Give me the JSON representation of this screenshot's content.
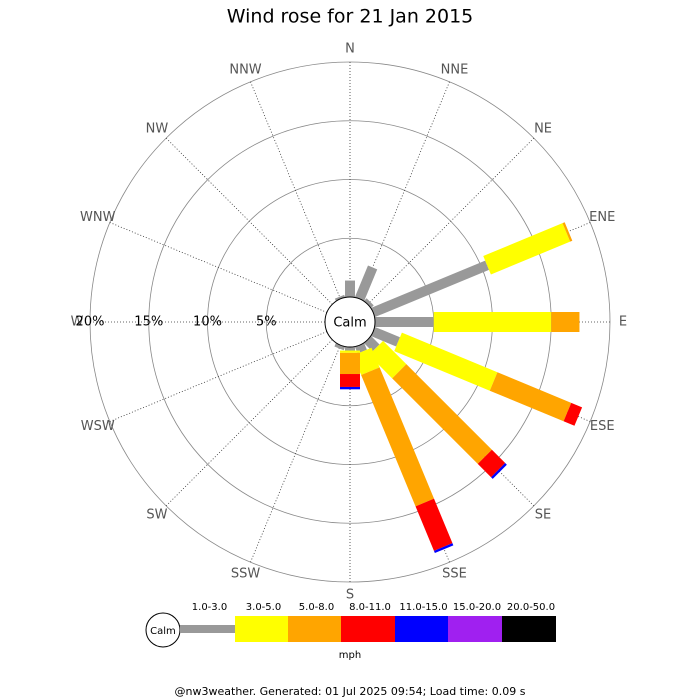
{
  "chart_data": {
    "type": "windrose",
    "title": "Wind rose for 21 Jan 2015",
    "categories": [
      "N",
      "NNE",
      "NE",
      "ENE",
      "E",
      "ESE",
      "SE",
      "SSE",
      "S",
      "SSW",
      "SW",
      "WSW",
      "W",
      "WNW",
      "NW",
      "NNW"
    ],
    "series": [
      {
        "name": "1.0-3.0",
        "color": "#999999",
        "values": [
          1.4,
          2.9,
          0.3,
          10.5,
          5.0,
          2.3,
          1.0,
          0.6,
          0.3,
          0.3,
          0,
          0,
          0,
          0,
          0,
          0.2
        ]
      },
      {
        "name": "3.0-5.0",
        "color": "#ffff00",
        "values": [
          0,
          0,
          0,
          7.3,
          10.0,
          8.8,
          2.8,
          1.8,
          0.2,
          0,
          0,
          0,
          0,
          0,
          0,
          0
        ]
      },
      {
        "name": "5.0-8.0",
        "color": "#ffa500",
        "values": [
          0,
          0,
          0,
          0.2,
          2.4,
          6.8,
          10.3,
          12.1,
          1.8,
          0,
          0,
          0,
          0,
          0,
          0,
          0
        ]
      },
      {
        "name": "8.0-11.0",
        "color": "#ff0000",
        "values": [
          0,
          0,
          0,
          0,
          0,
          1.0,
          1.6,
          4.1,
          1.1,
          0,
          0,
          0,
          0,
          0,
          0,
          0
        ]
      },
      {
        "name": "11.0-15.0",
        "color": "#0000ff",
        "values": [
          0,
          0,
          0,
          0,
          0,
          0,
          0.2,
          0.2,
          0.2,
          0,
          0,
          0,
          0,
          0,
          0,
          0
        ]
      },
      {
        "name": "15.0-20.0",
        "color": "#a020f0",
        "values": [
          0,
          0,
          0,
          0,
          0,
          0,
          0,
          0,
          0,
          0,
          0,
          0,
          0,
          0,
          0,
          0
        ]
      },
      {
        "name": "20.0-50.0",
        "color": "#000000",
        "values": [
          0,
          0,
          0,
          0,
          0,
          0,
          0,
          0,
          0,
          0,
          0,
          0,
          0,
          0,
          0,
          0
        ]
      }
    ],
    "rlim": [
      0,
      20
    ],
    "rticks": [
      {
        "value": 5,
        "label": "5%"
      },
      {
        "value": 10,
        "label": "10%"
      },
      {
        "value": 15,
        "label": "15%"
      },
      {
        "value": 20,
        "label": "20%"
      }
    ],
    "calm_label": "Calm",
    "units": "mph",
    "footer": "@nw3weather. Generated: 01 Jul 2025 09:54; Load time: 0.09 s"
  }
}
